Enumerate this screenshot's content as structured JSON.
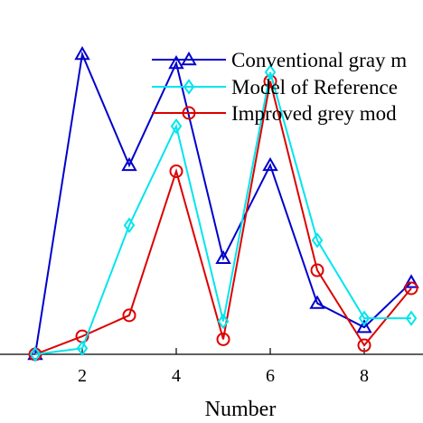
{
  "chart_data": {
    "type": "line",
    "xlabel": "Number",
    "ylabel": "",
    "title": "",
    "x": [
      1,
      2,
      3,
      4,
      5,
      6,
      7,
      8,
      9
    ],
    "xticks": [
      "2",
      "4",
      "6",
      "8"
    ],
    "xtick_values": [
      2,
      4,
      6,
      8
    ],
    "xlim": [
      0.25,
      9.25
    ],
    "ylim": [
      0,
      1
    ],
    "grid": false,
    "legend_position": "top-right",
    "series": [
      {
        "name": "Conventional gray model",
        "display_name": "Conventional gray m",
        "color": "#0000cc",
        "marker": "triangle",
        "values": [
          0.0,
          1.0,
          0.63,
          0.97,
          0.32,
          0.63,
          0.17,
          0.09,
          0.24
        ]
      },
      {
        "name": "Model of Reference",
        "display_name": "Model of Reference",
        "color": "#00e5ee",
        "marker": "diamond",
        "values": [
          0.0,
          0.02,
          0.43,
          0.76,
          0.11,
          0.94,
          0.38,
          0.12,
          0.12
        ]
      },
      {
        "name": "Improved grey model",
        "display_name": "Improved grey mod",
        "color": "#dd0000",
        "marker": "circle",
        "values": [
          0.0,
          0.06,
          0.13,
          0.61,
          0.05,
          0.91,
          0.28,
          0.03,
          0.22
        ]
      }
    ]
  }
}
